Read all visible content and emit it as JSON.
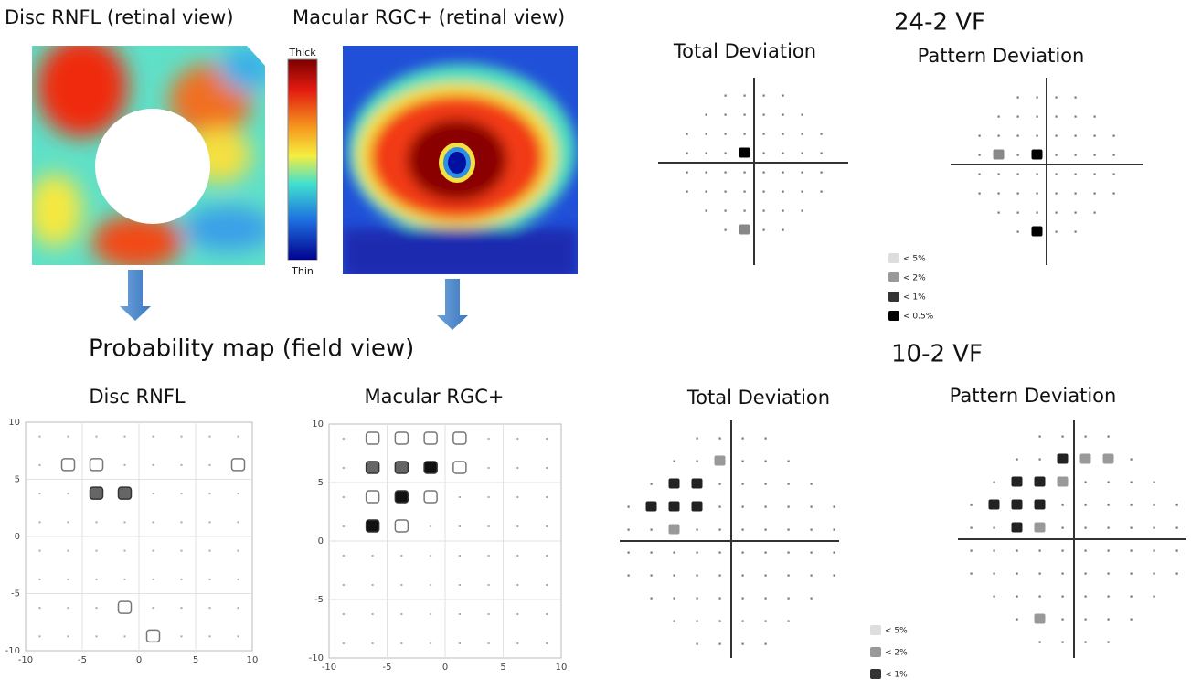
{
  "retinal_view": {
    "disc_title": "Disc RNFL (retinal view)",
    "macular_title": "Macular RGC+ (retinal view)",
    "colorbar": {
      "top": "Thick",
      "bottom": "Thin"
    }
  },
  "probability_map": {
    "title": "Probability map (field view)",
    "disc": {
      "title": "Disc RNFL",
      "y_labels": [
        "10",
        "5",
        "0",
        "-5",
        "-10"
      ],
      "x_labels": [
        "-10",
        "-5",
        "0",
        "5",
        "10"
      ]
    },
    "macular": {
      "title": "Macular RGC+",
      "y_labels": [
        "10",
        "5",
        "0",
        "-5",
        "-10"
      ],
      "x_labels": [
        "-10",
        "-5",
        "0",
        "5",
        "10"
      ]
    }
  },
  "vf_24_2": {
    "title": "24-2 VF",
    "total": "Total Deviation",
    "pattern": "Pattern Deviation",
    "legend": [
      "< 5%",
      "< 2%",
      "< 1%",
      "< 0.5%"
    ]
  },
  "vf_10_2": {
    "title": "10-2 VF",
    "total": "Total Deviation",
    "pattern": "Pattern Deviation",
    "legend": [
      "< 5%",
      "< 2%",
      "< 1%"
    ]
  }
}
